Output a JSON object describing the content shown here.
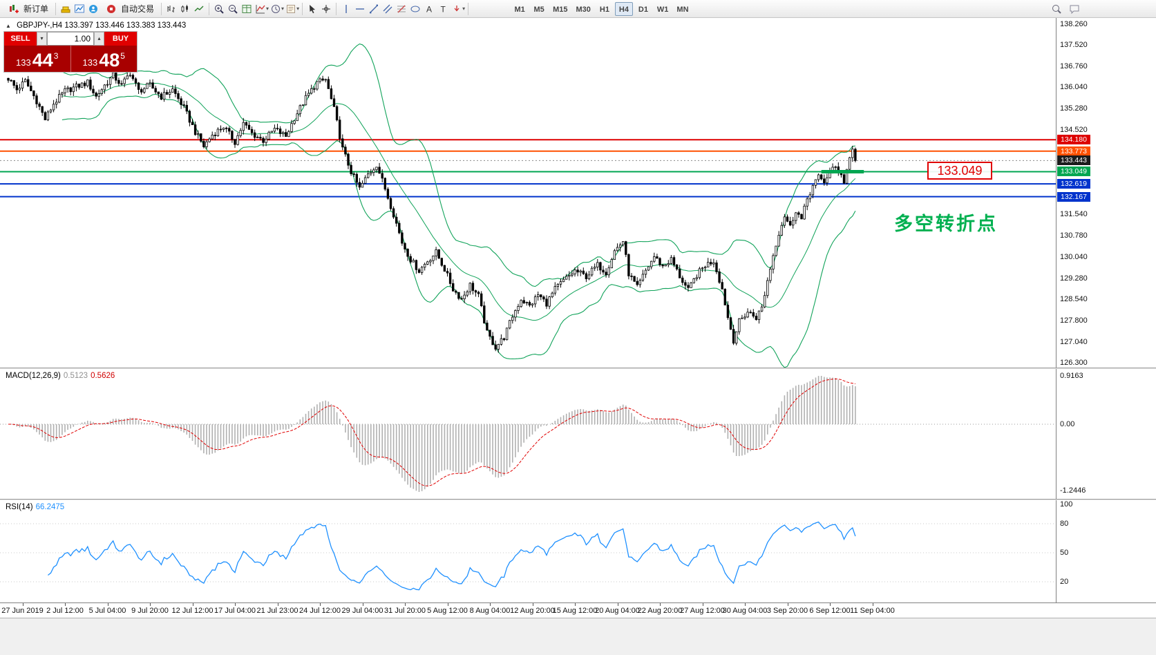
{
  "toolbar": {
    "new_order_label": "新订单",
    "autotrade_label": "自动交易",
    "timeframes": [
      "M1",
      "M5",
      "M15",
      "M30",
      "H1",
      "H4",
      "D1",
      "W1",
      "MN"
    ],
    "active_timeframe": "H4"
  },
  "chart_header": {
    "symbol_period": "GBPJPY-,H4",
    "ohlc": "133.397 133.446 133.383 133.443"
  },
  "trade_panel": {
    "sell_label": "SELL",
    "buy_label": "BUY",
    "volume": "1.00",
    "sell_price_prefix": "133",
    "sell_price_big": "44",
    "sell_price_sup": "3",
    "buy_price_prefix": "133",
    "buy_price_big": "48",
    "buy_price_sup": "5"
  },
  "annotations": {
    "price_box": "133.049",
    "cn_note": "多空转折点"
  },
  "price_axis": {
    "labels": [
      "138.260",
      "137.520",
      "136.760",
      "136.040",
      "135.280",
      "134.520",
      "131.540",
      "130.780",
      "130.040",
      "129.280",
      "128.540",
      "127.800",
      "127.040",
      "126.300"
    ],
    "badges": [
      {
        "text": "134.180",
        "bg": "#dd0000"
      },
      {
        "text": "133.773",
        "bg": "#ff5000"
      },
      {
        "text": "133.443",
        "bg": "#1c1c1c"
      },
      {
        "text": "133.049",
        "bg": "#00a651"
      },
      {
        "text": "132.619",
        "bg": "#0033cc"
      },
      {
        "text": "132.167",
        "bg": "#0033cc"
      }
    ]
  },
  "macd": {
    "label": "MACD(12,26,9)",
    "value_main": "0.5123",
    "value_signal": "0.5626",
    "axis": [
      "0.9163",
      "0.00",
      "-1.2446"
    ]
  },
  "rsi": {
    "label": "RSI(14)",
    "value": "66.2475",
    "axis": [
      "100",
      "80",
      "50",
      "20"
    ]
  },
  "time_axis": {
    "labels": [
      "27 Jun 2019",
      "2 Jul 12:00",
      "5 Jul 04:00",
      "9 Jul 20:00",
      "12 Jul 12:00",
      "17 Jul 04:00",
      "21 Jul 23:00",
      "24 Jul 12:00",
      "29 Jul 04:00",
      "31 Jul 20:00",
      "5 Aug 12:00",
      "8 Aug 04:00",
      "12 Aug 20:00",
      "15 Aug 12:00",
      "20 Aug 04:00",
      "22 Aug 20:00",
      "27 Aug 12:00",
      "30 Aug 04:00",
      "3 Sep 20:00",
      "6 Sep 12:00",
      "11 Sep 04:00"
    ]
  },
  "chart_data": {
    "type": "candlestick",
    "symbol": "GBPJPY",
    "period": "H4",
    "n_candles": 300,
    "last_close": 133.443,
    "price_range": [
      126.3,
      138.26
    ],
    "hlines": [
      {
        "price": 134.18,
        "color": "#dd0000",
        "width": 2,
        "style": "solid"
      },
      {
        "price": 133.773,
        "color": "#ff5000",
        "width": 2,
        "style": "solid"
      },
      {
        "price": 133.443,
        "color": "#888888",
        "width": 1,
        "style": "dotted"
      },
      {
        "price": 133.049,
        "color": "#00a651",
        "width": 2,
        "style": "solid"
      },
      {
        "price": 132.619,
        "color": "#0033cc",
        "width": 2,
        "style": "solid"
      },
      {
        "price": 132.167,
        "color": "#0033cc",
        "width": 2,
        "style": "solid"
      }
    ],
    "green_segment": {
      "price": 133.049,
      "from": 287,
      "to": 302,
      "width": 5
    },
    "bollinger": {
      "period": 20,
      "deviation": 2,
      "color": "#11a35a"
    },
    "macd_params": {
      "fast": 12,
      "slow": 26,
      "signal": 9
    },
    "rsi_period": 14,
    "price_waypoints": [
      [
        0,
        136.35
      ],
      [
        3,
        135.95
      ],
      [
        6,
        136.25
      ],
      [
        10,
        135.55
      ],
      [
        13,
        134.9
      ],
      [
        16,
        135.45
      ],
      [
        20,
        135.9
      ],
      [
        24,
        136.05
      ],
      [
        28,
        136.2
      ],
      [
        31,
        135.7
      ],
      [
        34,
        136.1
      ],
      [
        37,
        136.45
      ],
      [
        40,
        136.1
      ],
      [
        43,
        136.55
      ],
      [
        46,
        135.9
      ],
      [
        50,
        136.1
      ],
      [
        54,
        135.7
      ],
      [
        58,
        135.95
      ],
      [
        62,
        135.3
      ],
      [
        66,
        134.45
      ],
      [
        69,
        133.95
      ],
      [
        72,
        134.35
      ],
      [
        76,
        134.65
      ],
      [
        80,
        134.1
      ],
      [
        83,
        134.75
      ],
      [
        86,
        134.4
      ],
      [
        90,
        134.15
      ],
      [
        94,
        134.55
      ],
      [
        98,
        134.3
      ],
      [
        101,
        134.95
      ],
      [
        105,
        135.65
      ],
      [
        109,
        136.2
      ],
      [
        112,
        136.3
      ],
      [
        115,
        135.25
      ],
      [
        118,
        133.85
      ],
      [
        121,
        133.05
      ],
      [
        124,
        132.45
      ],
      [
        127,
        132.95
      ],
      [
        130,
        133.3
      ],
      [
        133,
        132.45
      ],
      [
        136,
        131.55
      ],
      [
        139,
        130.55
      ],
      [
        142,
        129.95
      ],
      [
        145,
        129.55
      ],
      [
        148,
        129.9
      ],
      [
        151,
        130.2
      ],
      [
        154,
        129.6
      ],
      [
        157,
        128.9
      ],
      [
        160,
        128.55
      ],
      [
        163,
        129.05
      ],
      [
        166,
        128.65
      ],
      [
        169,
        127.35
      ],
      [
        172,
        126.85
      ],
      [
        175,
        127.2
      ],
      [
        178,
        127.95
      ],
      [
        181,
        128.55
      ],
      [
        184,
        128.3
      ],
      [
        187,
        128.7
      ],
      [
        190,
        128.4
      ],
      [
        193,
        128.9
      ],
      [
        196,
        129.2
      ],
      [
        200,
        129.55
      ],
      [
        204,
        129.35
      ],
      [
        208,
        129.75
      ],
      [
        211,
        129.5
      ],
      [
        214,
        130.25
      ],
      [
        217,
        130.6
      ],
      [
        219,
        129.45
      ],
      [
        222,
        128.95
      ],
      [
        225,
        129.55
      ],
      [
        228,
        130.05
      ],
      [
        231,
        129.7
      ],
      [
        234,
        129.95
      ],
      [
        237,
        129.35
      ],
      [
        240,
        128.85
      ],
      [
        243,
        129.4
      ],
      [
        246,
        129.75
      ],
      [
        249,
        129.9
      ],
      [
        252,
        128.9
      ],
      [
        254,
        127.9
      ],
      [
        256,
        127.1
      ],
      [
        258,
        127.75
      ],
      [
        261,
        128.1
      ],
      [
        264,
        127.9
      ],
      [
        266,
        128.25
      ],
      [
        268,
        129.2
      ],
      [
        270,
        130.1
      ],
      [
        272,
        130.9
      ],
      [
        274,
        131.5
      ],
      [
        276,
        131.1
      ],
      [
        278,
        131.7
      ],
      [
        280,
        131.35
      ],
      [
        282,
        132.1
      ],
      [
        284,
        132.55
      ],
      [
        286,
        132.85
      ],
      [
        288,
        132.7
      ],
      [
        290,
        133.05
      ],
      [
        292,
        133.2
      ],
      [
        294,
        133.0
      ],
      [
        295,
        132.65
      ],
      [
        297,
        133.6
      ],
      [
        298,
        133.8
      ],
      [
        299,
        133.443
      ]
    ]
  }
}
